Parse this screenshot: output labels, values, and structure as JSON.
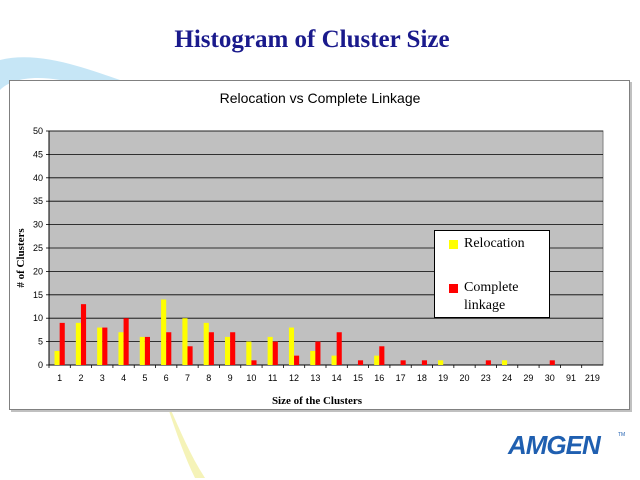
{
  "slide": {
    "title": "Histogram of Cluster Size",
    "logo": "AMGEN",
    "logo_tm": "TM"
  },
  "chart_data": {
    "type": "bar",
    "title": "Relocation vs Complete Linkage",
    "xlabel": "Size of the Clusters",
    "ylabel": "# of Clusters",
    "ylim": [
      0,
      50
    ],
    "yticks": [
      0,
      5,
      10,
      15,
      20,
      25,
      30,
      35,
      40,
      45,
      50
    ],
    "grid": true,
    "legend_position": "right",
    "categories": [
      "1",
      "2",
      "3",
      "4",
      "5",
      "6",
      "7",
      "8",
      "9",
      "10",
      "11",
      "12",
      "13",
      "14",
      "15",
      "16",
      "17",
      "18",
      "19",
      "20",
      "23",
      "24",
      "29",
      "30",
      "91",
      "219"
    ],
    "series": [
      {
        "name": "Relocation",
        "color": "#ffff00",
        "values": [
          3,
          9,
          8,
          7,
          6,
          14,
          10,
          9,
          6,
          5,
          6,
          8,
          3,
          2,
          0,
          2,
          0,
          0,
          1,
          0,
          0,
          1,
          0,
          0,
          0,
          0
        ]
      },
      {
        "name": "Complete linkage",
        "color": "#ff0000",
        "values": [
          9,
          13,
          8,
          10,
          6,
          7,
          4,
          7,
          7,
          1,
          5,
          2,
          5,
          7,
          1,
          4,
          1,
          1,
          0,
          0,
          1,
          0,
          0,
          1,
          0,
          0
        ]
      }
    ],
    "legend_labels": [
      [
        "Relocation"
      ],
      [
        "Complete",
        "linkage"
      ]
    ]
  }
}
